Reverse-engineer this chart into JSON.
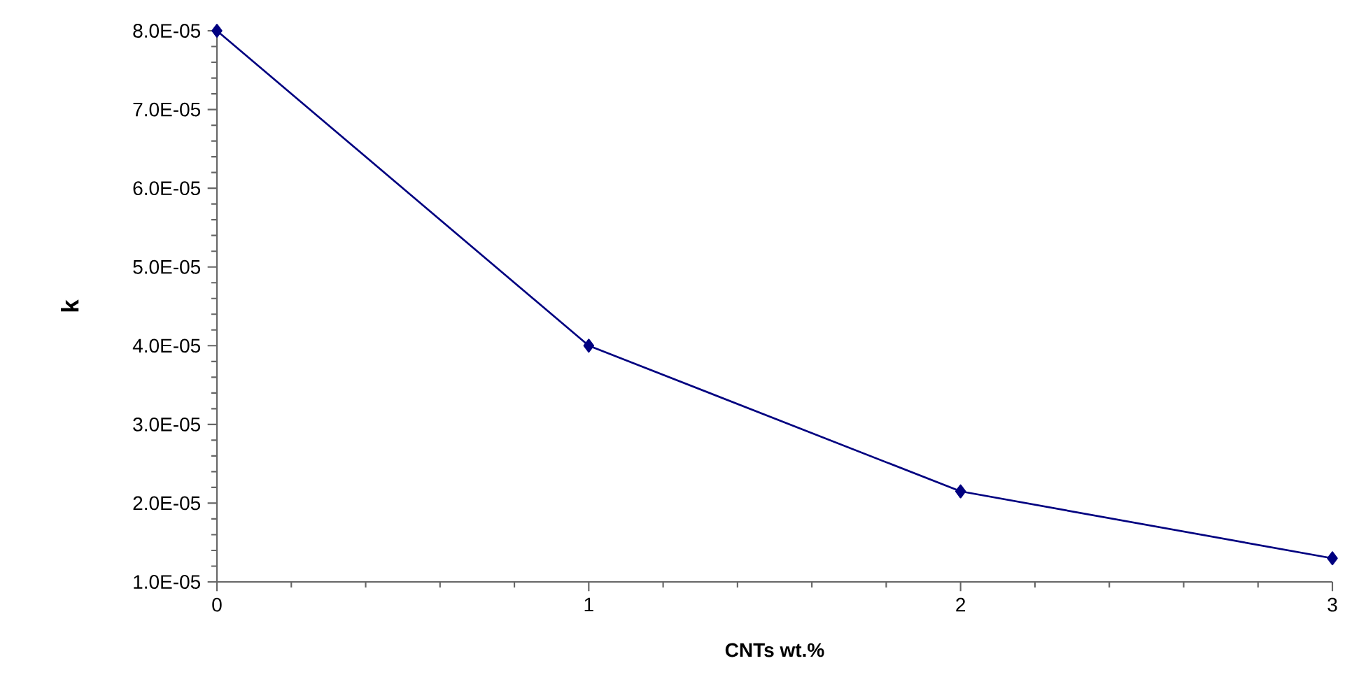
{
  "chart_data": {
    "type": "line",
    "xlabel": "CNTs wt.%",
    "ylabel": "k",
    "x": [
      0,
      1,
      2,
      3
    ],
    "series": [
      {
        "color": "#000080",
        "values": [
          8e-05,
          4e-05,
          2.15e-05,
          1.3e-05
        ]
      }
    ],
    "xlim": [
      0,
      3
    ],
    "xticks": [
      0,
      1,
      2,
      3
    ],
    "ylim": [
      1e-05,
      8e-05
    ],
    "yticks": [
      {
        "value": 1e-05,
        "label": "1.0E-05"
      },
      {
        "value": 2e-05,
        "label": "2.0E-05"
      },
      {
        "value": 3e-05,
        "label": "3.0E-05"
      },
      {
        "value": 4e-05,
        "label": "4.0E-05"
      },
      {
        "value": 5e-05,
        "label": "5.0E-05"
      },
      {
        "value": 6e-05,
        "label": "6.0E-05"
      },
      {
        "value": 7e-05,
        "label": "7.0E-05"
      },
      {
        "value": 8e-05,
        "label": "8.0E-05"
      }
    ],
    "marker": "diamond",
    "line_style": "solid"
  }
}
